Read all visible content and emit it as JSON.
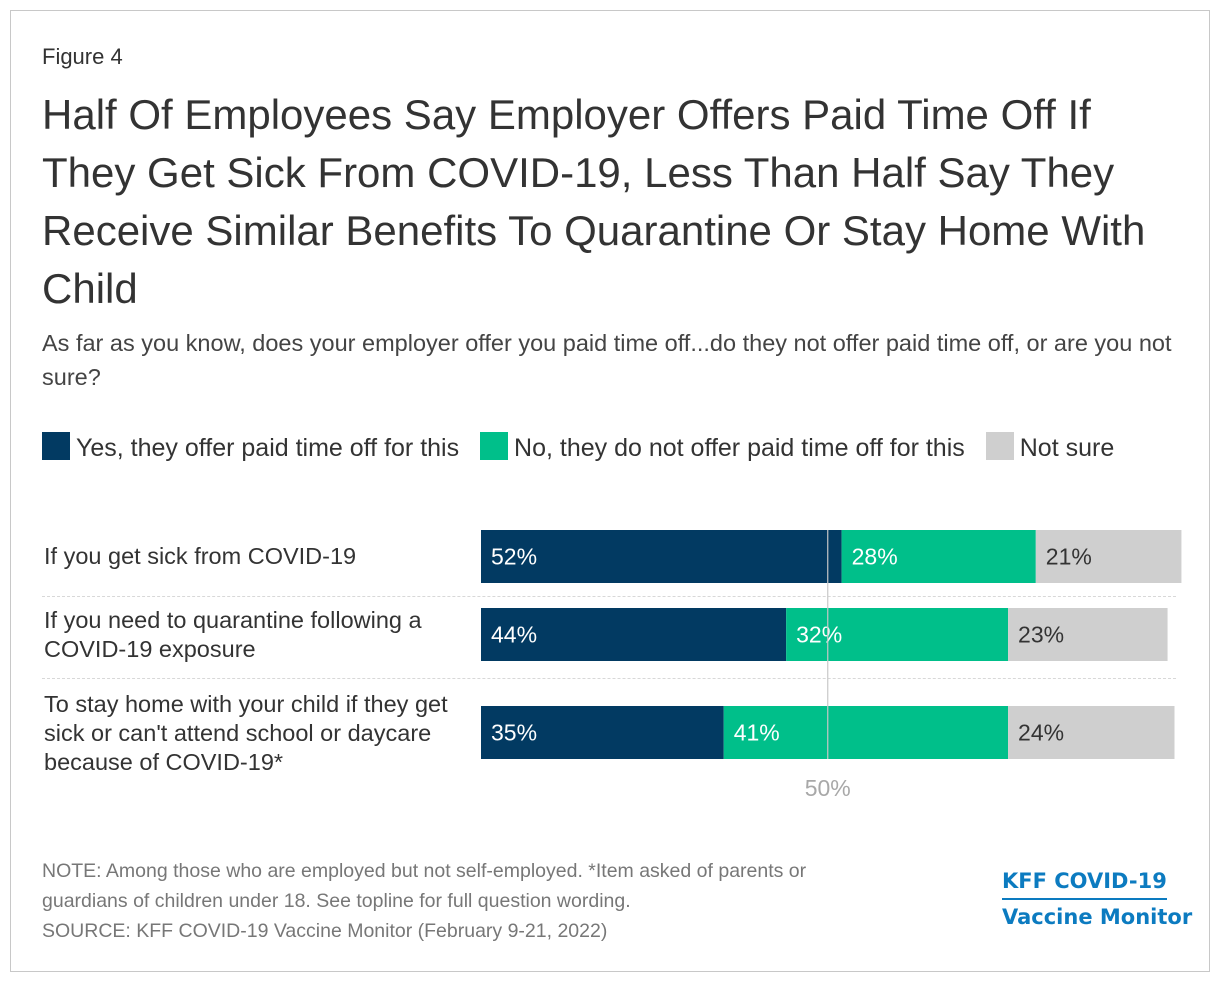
{
  "figure_label": "Figure 4",
  "title": "Half Of Employees Say Employer Offers Paid Time Off If They Get Sick From COVID-19, Less Than Half Say They Receive Similar Benefits To Quarantine Or Stay Home With Child",
  "subtitle": "As far as you know, does your employer offer you paid time off...do they not offer paid time off, or are you not sure?",
  "note": "NOTE: Among those who are employed but not self-employed. *Item asked of parents or guardians of children under 18. See topline for full question wording.",
  "note_lines": [
    "NOTE: Among those who are employed but not self-employed. *Item asked of parents or",
    "guardians of children under 18. See topline for full question wording."
  ],
  "source": "SOURCE: KFF COVID-19 Vaccine Monitor (February 9-21, 2022)",
  "brand": {
    "line1": "KFF COVID-19",
    "line2": "Vaccine Monitor"
  },
  "chart_data": {
    "type": "bar",
    "orientation": "horizontal",
    "stacked": true,
    "categories": [
      "If you get sick from COVID-19",
      "If you need to quarantine following a COVID-19 exposure",
      "To stay home with your child if they get sick or can't attend school or daycare because of COVID-19*"
    ],
    "series": [
      {
        "name": "Yes, they offer paid time off for this",
        "color": "#023a62",
        "values": [
          52,
          44,
          35
        ]
      },
      {
        "name": "No, they do not offer paid time off for this",
        "color": "#00bf8a",
        "values": [
          28,
          32,
          41
        ]
      },
      {
        "name": "Not sure",
        "color": "#cfcfcf",
        "values": [
          21,
          23,
          24
        ]
      }
    ],
    "reference_line": {
      "value": 50,
      "label": "50%"
    },
    "value_suffix": "%",
    "xlim": [
      0,
      100
    ],
    "legend_position": "top"
  }
}
